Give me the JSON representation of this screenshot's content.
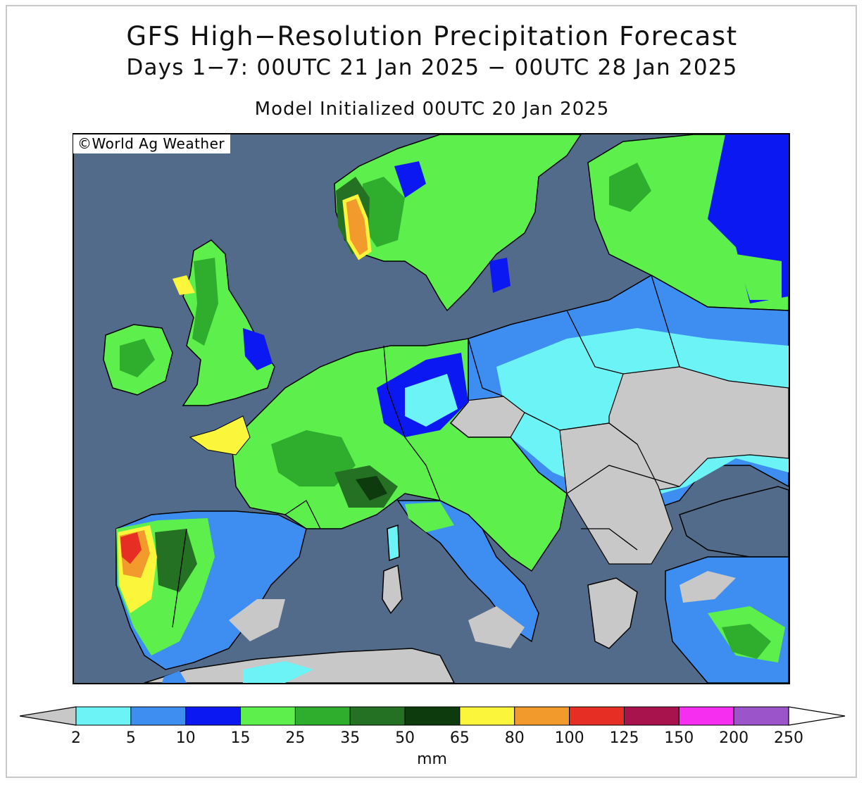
{
  "title": "GFS High−Resolution Precipitation Forecast",
  "subtitle": "Days 1−7: 00UTC 21 Jan 2025 − 00UTC 28 Jan 2025",
  "init_line": "Model Initialized 00UTC 20 Jan 2025",
  "copyright": "©World Ag Weather",
  "legend": {
    "unit": "mm",
    "bins": [
      {
        "from": "2",
        "color": "#6cf3f5"
      },
      {
        "from": "5",
        "color": "#3d8ef0"
      },
      {
        "from": "10",
        "color": "#0b18f2"
      },
      {
        "from": "15",
        "color": "#5df04d"
      },
      {
        "from": "25",
        "color": "#2fae2e"
      },
      {
        "from": "35",
        "color": "#257123"
      },
      {
        "from": "50",
        "color": "#0d3b0d"
      },
      {
        "from": "65",
        "color": "#fbf63c"
      },
      {
        "from": "80",
        "color": "#f29a2c"
      },
      {
        "from": "100",
        "color": "#e62e24"
      },
      {
        "from": "125",
        "color": "#a8134e"
      },
      {
        "from": "150",
        "color": "#f52ef0"
      },
      {
        "from": "200",
        "color": "#9b54c9"
      }
    ],
    "ticks": [
      "2",
      "5",
      "10",
      "15",
      "25",
      "35",
      "50",
      "65",
      "80",
      "100",
      "125",
      "150",
      "200",
      "250"
    ],
    "below_color": "#c8c8c8",
    "above_color": "#ffffff"
  },
  "colors": {
    "water": "#536b8a",
    "dry": "#c8c8c8",
    "border": "#000000"
  }
}
